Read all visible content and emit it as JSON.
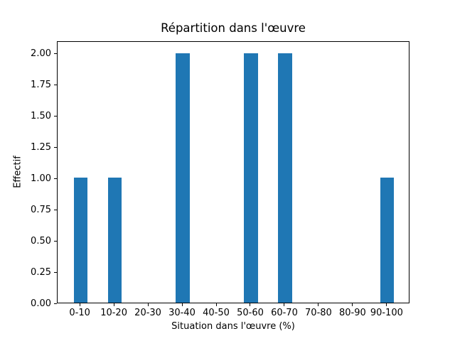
{
  "chart_data": {
    "type": "bar",
    "title": "Répartition dans l'œuvre",
    "xlabel": "Situation dans l'œuvre (%)",
    "ylabel": "Effectif",
    "categories": [
      "0-10",
      "10-20",
      "20-30",
      "30-40",
      "40-50",
      "50-60",
      "60-70",
      "70-80",
      "80-90",
      "90-100"
    ],
    "values": [
      1,
      1,
      0,
      2,
      0,
      2,
      2,
      0,
      0,
      1
    ],
    "ytick_labels": [
      "0.00",
      "0.25",
      "0.50",
      "0.75",
      "1.00",
      "1.25",
      "1.50",
      "1.75",
      "2.00"
    ],
    "ylim": [
      0,
      2.1
    ],
    "bar_color": "#1f77b4",
    "axis_color": "#000000",
    "background_color": "#ffffff",
    "grid": false,
    "legend": null
  }
}
